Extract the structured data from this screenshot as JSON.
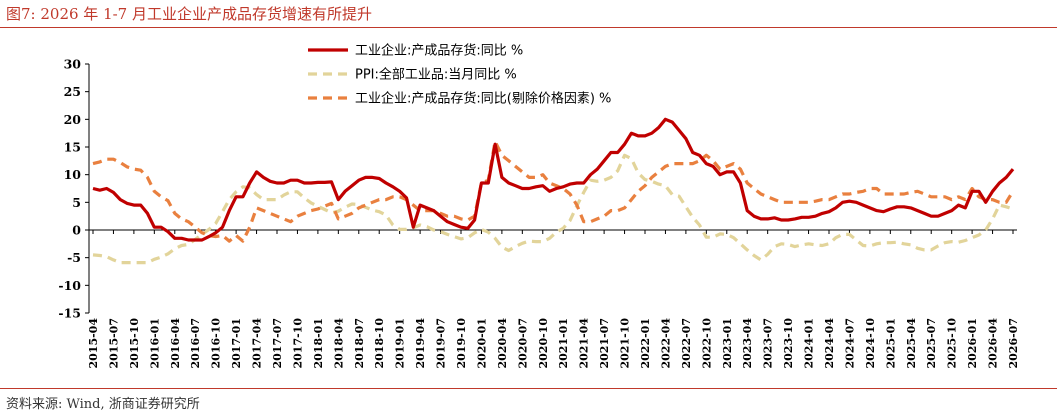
{
  "figure_title": "图7:   2026 年 1-7 月工业企业产成品存货增速有所提升",
  "source_note": "资料来源:  Wind,  浙商证券研究所",
  "chart_data": {
    "type": "line",
    "ylim": [
      -15,
      30
    ],
    "y_ticks": [
      -15,
      -10,
      -5,
      0,
      5,
      10,
      15,
      20,
      25,
      30
    ],
    "legend_position": "top-center",
    "grid": false,
    "x_tick_labels": [
      "2015-04",
      "2015-07",
      "2015-10",
      "2016-01",
      "2016-04",
      "2016-07",
      "2016-10",
      "2017-01",
      "2017-04",
      "2017-07",
      "2017-10",
      "2018-01",
      "2018-04",
      "2018-07",
      "2018-10",
      "2019-01",
      "2019-04",
      "2019-07",
      "2019-10",
      "2020-01",
      "2020-04",
      "2020-07",
      "2020-10",
      "2021-01",
      "2021-04",
      "2021-07",
      "2021-10",
      "2022-01",
      "2022-04",
      "2022-07",
      "2022-10",
      "2023-01",
      "2023-04",
      "2023-07",
      "2023-10",
      "2024-01",
      "2024-04",
      "2024-07",
      "2024-10",
      "2025-01",
      "2025-04",
      "2025-07",
      "2025-10",
      "2026-01",
      "2026-04",
      "2026-07"
    ],
    "x": [
      "2015-04",
      "2015-05",
      "2015-06",
      "2015-07",
      "2015-08",
      "2015-09",
      "2015-10",
      "2015-11",
      "2015-12",
      "2016-01",
      "2016-02",
      "2016-03",
      "2016-04",
      "2016-05",
      "2016-06",
      "2016-07",
      "2016-08",
      "2016-09",
      "2016-10",
      "2016-11",
      "2016-12",
      "2017-01",
      "2017-02",
      "2017-03",
      "2017-04",
      "2017-05",
      "2017-06",
      "2017-07",
      "2017-08",
      "2017-09",
      "2017-10",
      "2017-11",
      "2017-12",
      "2018-01",
      "2018-02",
      "2018-03",
      "2018-04",
      "2018-05",
      "2018-06",
      "2018-07",
      "2018-08",
      "2018-09",
      "2018-10",
      "2018-11",
      "2018-12",
      "2019-01",
      "2019-02",
      "2019-03",
      "2019-04",
      "2019-05",
      "2019-06",
      "2019-07",
      "2019-08",
      "2019-09",
      "2019-10",
      "2019-11",
      "2019-12",
      "2020-01",
      "2020-02",
      "2020-03",
      "2020-04",
      "2020-05",
      "2020-06",
      "2020-07",
      "2020-08",
      "2020-09",
      "2020-10",
      "2020-11",
      "2020-12",
      "2021-01",
      "2021-02",
      "2021-03",
      "2021-04",
      "2021-05",
      "2021-06",
      "2021-07",
      "2021-08",
      "2021-09",
      "2021-10",
      "2021-11",
      "2021-12",
      "2022-01",
      "2022-02",
      "2022-03",
      "2022-04",
      "2022-05",
      "2022-06",
      "2022-07",
      "2022-08",
      "2022-09",
      "2022-10",
      "2022-11",
      "2022-12",
      "2023-01",
      "2023-02",
      "2023-03",
      "2023-04",
      "2023-05",
      "2023-06",
      "2023-07",
      "2023-08",
      "2023-09",
      "2023-10",
      "2023-11",
      "2023-12",
      "2024-01",
      "2024-02",
      "2024-03",
      "2024-04",
      "2024-05",
      "2024-06",
      "2024-07",
      "2024-08",
      "2024-09",
      "2024-10",
      "2024-11",
      "2024-12",
      "2025-01",
      "2025-02",
      "2025-03",
      "2025-04",
      "2025-05",
      "2025-06",
      "2025-07",
      "2025-08",
      "2025-09",
      "2025-10",
      "2025-11",
      "2025-12",
      "2026-01",
      "2026-02",
      "2026-03",
      "2026-04",
      "2026-05",
      "2026-06",
      "2026-07"
    ],
    "series": [
      {
        "name": "工业企业:产成品存货:同比 %",
        "color": "#c00000",
        "style": "solid",
        "values": [
          7.5,
          7.2,
          7.5,
          6.8,
          5.5,
          4.8,
          4.5,
          4.5,
          3.0,
          0.5,
          0.5,
          -0.3,
          -1.5,
          -1.5,
          -1.8,
          -1.8,
          -1.8,
          -1.2,
          -0.5,
          0.5,
          3.5,
          6.0,
          6.0,
          8.5,
          10.5,
          9.5,
          8.8,
          8.5,
          8.5,
          9.0,
          9.0,
          8.5,
          8.5,
          8.6,
          8.6,
          8.7,
          5.5,
          7.0,
          8.0,
          9.0,
          9.5,
          9.5,
          9.3,
          8.5,
          7.8,
          7.0,
          5.8,
          0.5,
          4.5,
          4.0,
          3.5,
          2.5,
          1.5,
          1.0,
          0.5,
          0.3,
          1.8,
          8.5,
          8.5,
          15.5,
          9.5,
          8.5,
          8.0,
          7.5,
          7.5,
          7.8,
          8.0,
          7.0,
          7.5,
          7.8,
          8.3,
          8.5,
          8.5,
          10.0,
          11.0,
          12.5,
          14.0,
          14.0,
          15.5,
          17.5,
          17.0,
          17.0,
          17.5,
          18.5,
          20.0,
          19.5,
          18.0,
          16.5,
          14.0,
          13.5,
          12.0,
          11.5,
          10.0,
          10.5,
          10.5,
          8.5,
          3.5,
          2.5,
          2.0,
          2.0,
          2.2,
          1.8,
          1.8,
          2.0,
          2.3,
          2.3,
          2.5,
          3.0,
          3.3,
          4.0,
          5.0,
          5.2,
          5.0,
          4.5,
          4.0,
          3.5,
          3.3,
          3.8,
          4.2,
          4.2,
          4.0,
          3.5,
          3.0,
          2.5,
          2.5,
          3.0,
          3.5,
          4.5,
          4.0,
          7.0,
          7.0,
          5.0,
          7.0,
          8.5,
          9.5,
          11.0
        ]
      },
      {
        "name": "PPI:全部工业品:当月同比 %",
        "color": "#e2d49a",
        "style": "dashed",
        "values": [
          -4.5,
          -4.6,
          -4.8,
          -5.4,
          -5.9,
          -5.9,
          -5.9,
          -5.9,
          -5.9,
          -5.3,
          -4.9,
          -4.3,
          -3.4,
          -2.8,
          -2.6,
          -1.7,
          -0.8,
          0.1,
          1.2,
          3.3,
          5.5,
          6.9,
          7.8,
          7.6,
          6.4,
          5.5,
          5.5,
          5.5,
          6.3,
          6.9,
          6.9,
          5.8,
          4.9,
          4.3,
          3.7,
          3.1,
          3.4,
          4.1,
          4.7,
          4.6,
          4.1,
          3.6,
          3.3,
          2.7,
          0.9,
          0.1,
          0.1,
          0.4,
          0.9,
          0.6,
          0.0,
          -0.3,
          -0.8,
          -1.2,
          -1.6,
          -1.4,
          -0.5,
          0.1,
          -0.4,
          -1.5,
          -3.1,
          -3.7,
          -3.0,
          -2.4,
          -2.0,
          -2.1,
          -2.1,
          -1.5,
          -0.4,
          0.3,
          1.7,
          4.4,
          6.8,
          9.0,
          8.8,
          9.0,
          9.5,
          10.7,
          13.5,
          12.9,
          10.3,
          9.1,
          8.8,
          8.3,
          8.0,
          6.4,
          6.1,
          4.2,
          2.3,
          0.9,
          -1.3,
          -1.3,
          -0.7,
          -0.8,
          -1.4,
          -2.5,
          -3.6,
          -4.6,
          -5.4,
          -4.4,
          -3.0,
          -2.5,
          -2.6,
          -3.0,
          -2.7,
          -2.5,
          -2.7,
          -2.8,
          -2.5,
          -1.4,
          -0.8,
          -0.8,
          -1.8,
          -2.8,
          -2.9,
          -2.5,
          -2.3,
          -2.3,
          -2.2,
          -2.5,
          -2.7,
          -3.3,
          -3.6,
          -3.6,
          -2.9,
          -2.3,
          -2.1,
          -2.2,
          -1.9,
          -1.4,
          -0.9,
          0.0,
          2.0,
          4.5,
          4.2,
          3.8
        ]
      },
      {
        "name": "工业企业:产成品存货:同比(剔除价格因素) %",
        "color": "#e9803f",
        "style": "dashed",
        "values": [
          12.0,
          12.3,
          12.8,
          12.8,
          12.2,
          11.4,
          11.0,
          10.8,
          9.5,
          7.0,
          6.0,
          5.3,
          3.0,
          2.0,
          1.5,
          0.5,
          -0.5,
          -1.0,
          -1.2,
          -1.0,
          -2.0,
          -1.0,
          -2.0,
          0.5,
          4.0,
          3.5,
          3.0,
          2.5,
          2.0,
          1.5,
          2.5,
          3.0,
          3.5,
          3.8,
          4.3,
          4.8,
          2.0,
          2.5,
          3.0,
          4.0,
          4.5,
          5.0,
          5.5,
          5.5,
          6.0,
          6.0,
          5.5,
          4.5,
          3.5,
          3.5,
          3.5,
          3.0,
          2.5,
          2.5,
          2.0,
          1.8,
          2.5,
          8.5,
          9.0,
          16.0,
          13.5,
          12.5,
          11.5,
          10.5,
          9.5,
          9.5,
          10.0,
          8.5,
          8.0,
          7.5,
          6.5,
          4.5,
          1.5,
          1.5,
          2.0,
          2.5,
          3.5,
          3.5,
          4.0,
          5.5,
          7.0,
          8.0,
          9.5,
          10.5,
          11.5,
          12.0,
          12.0,
          12.0,
          12.0,
          12.5,
          13.5,
          12.5,
          11.0,
          11.5,
          12.0,
          11.0,
          8.5,
          7.5,
          6.5,
          6.0,
          5.5,
          5.0,
          5.0,
          5.0,
          5.0,
          5.0,
          5.2,
          5.5,
          5.5,
          6.0,
          6.5,
          6.5,
          6.8,
          7.0,
          7.5,
          7.5,
          6.5,
          6.5,
          6.5,
          6.5,
          6.8,
          7.0,
          6.5,
          6.0,
          6.0,
          6.0,
          5.5,
          6.0,
          5.5,
          7.5,
          6.0,
          5.5,
          5.5,
          5.0,
          5.0,
          7.0
        ]
      }
    ]
  }
}
